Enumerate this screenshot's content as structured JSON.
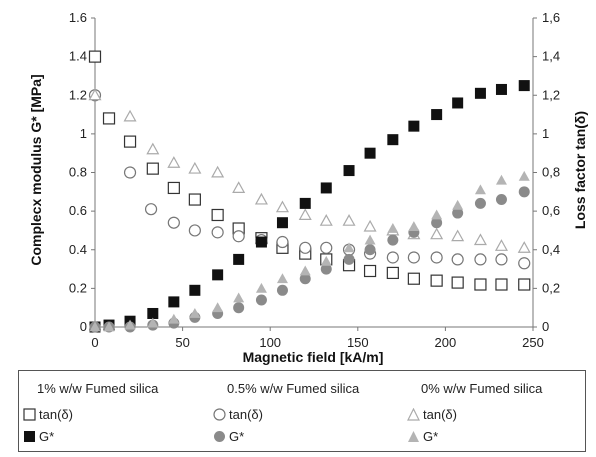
{
  "chart_data": {
    "type": "scatter",
    "xlabel": "Magnetic field [kA/m]",
    "ylabel": "Complecx modulus G* [MPa]",
    "y2label": "Loss factor tan(δ)",
    "xlim": [
      0,
      250
    ],
    "ylim": [
      0,
      1.6
    ],
    "y2lim": [
      0,
      1.6
    ],
    "xticks": [
      "0",
      "50",
      "100",
      "150",
      "200",
      "250"
    ],
    "yticks": [
      "0",
      "0.2",
      "0.4",
      "0.6",
      "0.8",
      "1",
      "1.2",
      "1.4",
      "1.6"
    ],
    "y2ticks": [
      "0",
      "0,2",
      "0,4",
      "0,6",
      "0,8",
      "1",
      "1,2",
      "1,4",
      "1,6"
    ],
    "grid": false,
    "legend": {
      "placement": "bottom",
      "groups": [
        "1% w/w Fumed silica",
        "0.5% w/w Fumed silica",
        "0% w/w Fumed silica"
      ],
      "tan_label": "tan(δ)",
      "g_label": "G*"
    },
    "series": [
      {
        "name": "tan(δ)",
        "group": 0,
        "color": "#333333",
        "marker": "square-open",
        "axis": "right",
        "x": [
          0,
          8,
          20,
          33,
          45,
          57,
          70,
          82,
          95,
          107,
          120,
          132,
          145,
          157,
          170,
          182,
          195,
          207,
          220,
          232,
          245
        ],
        "y": [
          1.4,
          1.08,
          0.96,
          0.82,
          0.72,
          0.66,
          0.58,
          0.51,
          0.46,
          0.41,
          0.38,
          0.35,
          0.32,
          0.29,
          0.28,
          0.25,
          0.24,
          0.23,
          0.22,
          0.22,
          0.22
        ]
      },
      {
        "name": "tan(δ)",
        "group": 1,
        "color": "#777777",
        "marker": "circle-open",
        "axis": "right",
        "x": [
          0,
          20,
          32,
          45,
          57,
          70,
          82,
          95,
          107,
          120,
          132,
          145,
          157,
          170,
          182,
          195,
          207,
          220,
          232,
          245
        ],
        "y": [
          1.2,
          0.8,
          0.61,
          0.54,
          0.5,
          0.49,
          0.47,
          0.45,
          0.44,
          0.41,
          0.41,
          0.4,
          0.38,
          0.36,
          0.36,
          0.36,
          0.35,
          0.35,
          0.35,
          0.33
        ]
      },
      {
        "name": "tan(δ)",
        "group": 2,
        "color": "#aaaaaa",
        "marker": "triangle-open",
        "axis": "right",
        "x": [
          0,
          20,
          33,
          45,
          57,
          70,
          82,
          95,
          107,
          120,
          132,
          145,
          157,
          170,
          182,
          195,
          207,
          220,
          232,
          245
        ],
        "y": [
          1.2,
          1.09,
          0.92,
          0.85,
          0.82,
          0.8,
          0.72,
          0.66,
          0.62,
          0.58,
          0.55,
          0.55,
          0.52,
          0.5,
          0.48,
          0.48,
          0.47,
          0.45,
          0.42,
          0.41
        ]
      },
      {
        "name": "G*",
        "group": 0,
        "color": "#111111",
        "marker": "square-filled",
        "axis": "left",
        "x": [
          0,
          8,
          20,
          33,
          45,
          57,
          70,
          82,
          95,
          107,
          120,
          132,
          145,
          157,
          170,
          182,
          195,
          207,
          220,
          232,
          245
        ],
        "y": [
          0.0,
          0.01,
          0.03,
          0.07,
          0.13,
          0.19,
          0.27,
          0.35,
          0.44,
          0.54,
          0.64,
          0.72,
          0.81,
          0.9,
          0.97,
          1.04,
          1.1,
          1.16,
          1.21,
          1.23,
          1.25
        ]
      },
      {
        "name": "G*",
        "group": 1,
        "color": "#8a8a8a",
        "marker": "circle-filled",
        "axis": "left",
        "x": [
          0,
          8,
          20,
          33,
          45,
          57,
          70,
          82,
          95,
          107,
          120,
          132,
          145,
          157,
          170,
          182,
          195,
          207,
          220,
          232,
          245
        ],
        "y": [
          0.0,
          0.0,
          0.0,
          0.01,
          0.02,
          0.05,
          0.07,
          0.1,
          0.14,
          0.19,
          0.25,
          0.3,
          0.35,
          0.4,
          0.45,
          0.49,
          0.54,
          0.59,
          0.64,
          0.66,
          0.7
        ]
      },
      {
        "name": "G*",
        "group": 2,
        "color": "#b4b4b4",
        "marker": "triangle-filled",
        "axis": "left",
        "x": [
          0,
          8,
          20,
          33,
          45,
          57,
          70,
          82,
          95,
          107,
          120,
          132,
          145,
          157,
          170,
          182,
          195,
          207,
          220,
          232,
          245
        ],
        "y": [
          0.0,
          0.0,
          0.01,
          0.02,
          0.04,
          0.07,
          0.1,
          0.15,
          0.2,
          0.25,
          0.29,
          0.34,
          0.41,
          0.45,
          0.51,
          0.52,
          0.58,
          0.63,
          0.71,
          0.76,
          0.78
        ]
      }
    ]
  }
}
